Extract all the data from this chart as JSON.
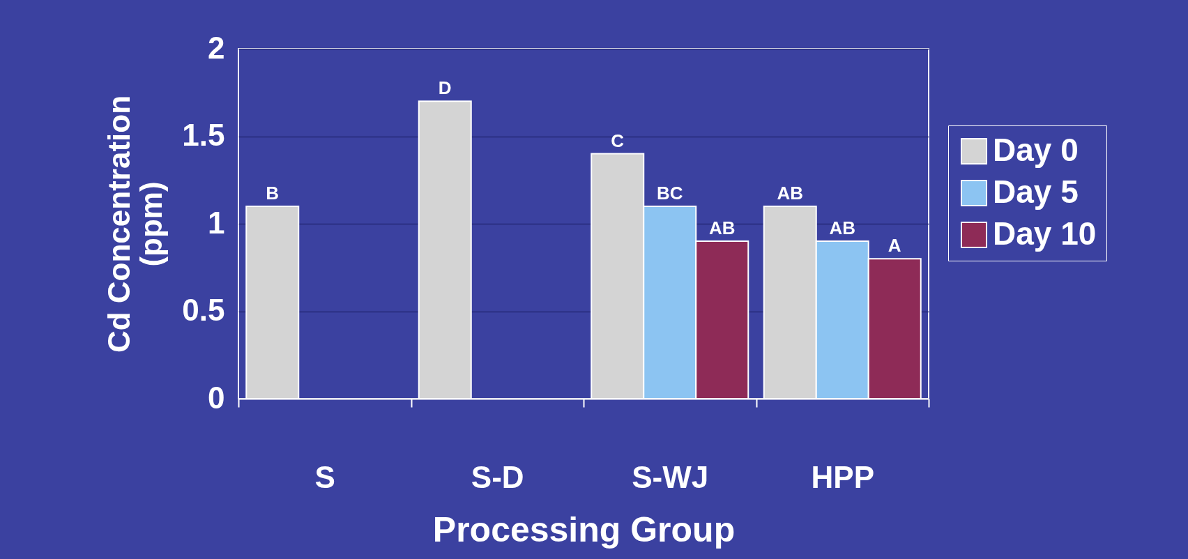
{
  "chart_data": {
    "type": "bar",
    "xlabel": "Processing Group",
    "ylabel": "Cd Concentration (ppm)",
    "categories": [
      "S",
      "S-D",
      "S-WJ",
      "HPP"
    ],
    "series": [
      {
        "name": "Day 0",
        "color": "#d4d4d4",
        "values": [
          1.1,
          1.7,
          1.4,
          1.1
        ]
      },
      {
        "name": "Day 5",
        "color": "#8cc4f2",
        "values": [
          null,
          null,
          1.1,
          0.9
        ]
      },
      {
        "name": "Day 10",
        "color": "#8e2b57",
        "values": [
          null,
          null,
          0.9,
          0.8
        ]
      }
    ],
    "ylim": [
      0,
      2
    ],
    "yticks": [
      0,
      0.5,
      1,
      1.5,
      2
    ],
    "grid": "y",
    "legend": "right",
    "annotations": [
      "B",
      "D",
      "C",
      "BC",
      "AB",
      "AB",
      "AB",
      "A"
    ]
  }
}
